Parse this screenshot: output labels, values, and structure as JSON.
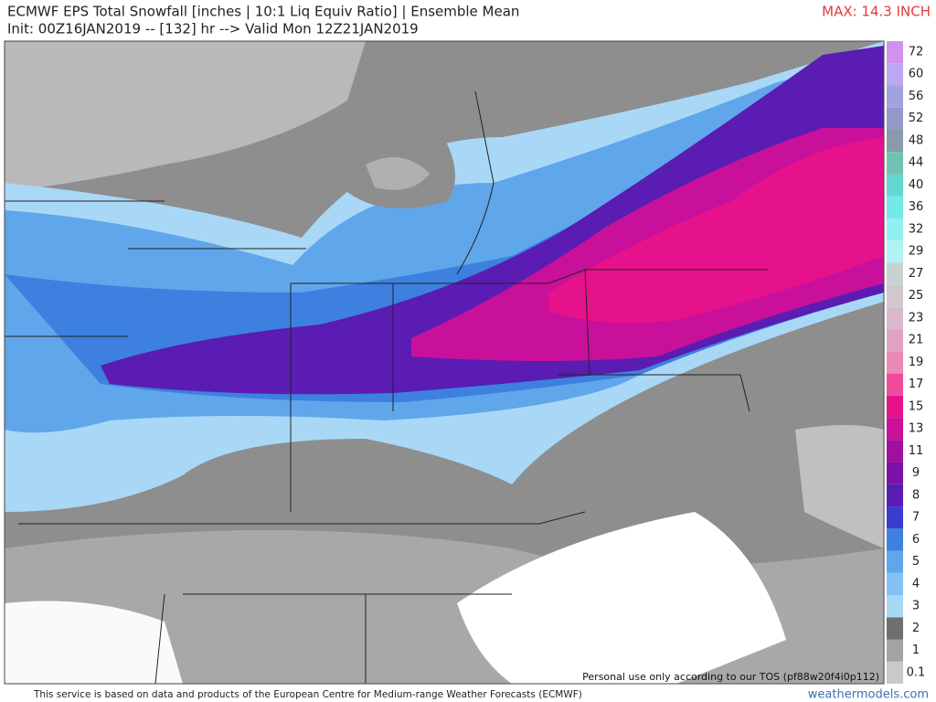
{
  "header": {
    "title": "ECMWF EPS Total Snowfall [inches | 10:1 Liq Equiv Ratio] | Ensemble Mean",
    "subtitle": "Init: 00Z16JAN2019 -- [132] hr --> Valid Mon 12Z21JAN2019",
    "max_label": "MAX: 14.3 INCH"
  },
  "legend": {
    "levels": [
      {
        "label": "0.1",
        "color": "#c9c9c9"
      },
      {
        "label": "1",
        "color": "#a3a3a3"
      },
      {
        "label": "2",
        "color": "#6f6f6f"
      },
      {
        "label": "3",
        "color": "#a9d8f6"
      },
      {
        "label": "4",
        "color": "#84c1f2"
      },
      {
        "label": "5",
        "color": "#60a6eb"
      },
      {
        "label": "6",
        "color": "#3d80e0"
      },
      {
        "label": "7",
        "color": "#3a3ccf"
      },
      {
        "label": "8",
        "color": "#5a1cb2"
      },
      {
        "label": "9",
        "color": "#7a12a8"
      },
      {
        "label": "11",
        "color": "#a0109f"
      },
      {
        "label": "13",
        "color": "#c8109a"
      },
      {
        "label": "15",
        "color": "#e6128b"
      },
      {
        "label": "17",
        "color": "#ee4c9b"
      },
      {
        "label": "19",
        "color": "#e98ab4"
      },
      {
        "label": "21",
        "color": "#e2a2c2"
      },
      {
        "label": "23",
        "color": "#d9b9c9"
      },
      {
        "label": "25",
        "color": "#d0c8cc"
      },
      {
        "label": "27",
        "color": "#c8d2d2"
      },
      {
        "label": "29",
        "color": "#b2f2f2"
      },
      {
        "label": "32",
        "color": "#92f0f0"
      },
      {
        "label": "36",
        "color": "#72e8e8"
      },
      {
        "label": "40",
        "color": "#62d8d0"
      },
      {
        "label": "44",
        "color": "#72c2b2"
      },
      {
        "label": "48",
        "color": "#8a9aaa"
      },
      {
        "label": "52",
        "color": "#9298c8"
      },
      {
        "label": "56",
        "color": "#a2a2e0"
      },
      {
        "label": "60",
        "color": "#baa8f0"
      },
      {
        "label": "72",
        "color": "#d092f0"
      }
    ]
  },
  "map": {
    "notice": "Personal use only according to our TOS (pf88w20f4i0p112)"
  },
  "footer": {
    "disclaimer": "This service is based on data and products of the European Centre for Medium-range Weather Forecasts (ECMWF)",
    "site": "weathermodels.com"
  }
}
